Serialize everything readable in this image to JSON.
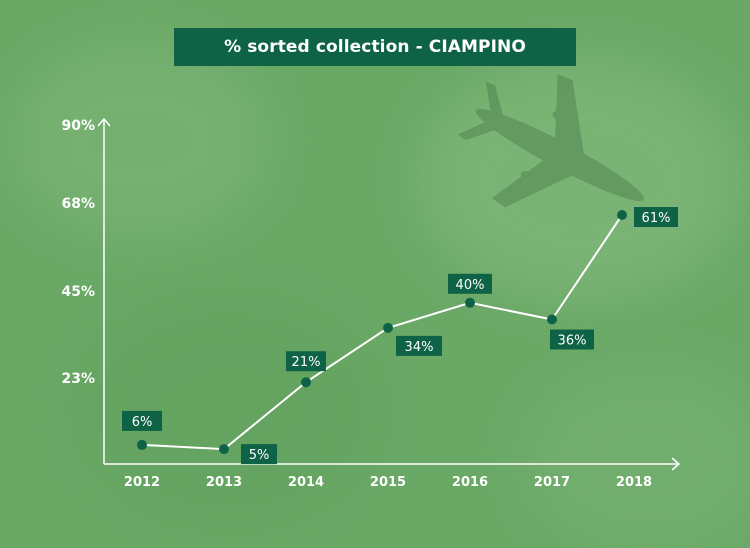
{
  "colors": {
    "background": "#6aa866",
    "accent": "#0e6347",
    "line": "#ffffff",
    "marker": "#0e6347"
  },
  "chart_data": {
    "type": "line",
    "title": "% sorted collection  - CIAMPINO",
    "categories": [
      "2012",
      "2013",
      "2014",
      "2015",
      "2016",
      "2017",
      "2018"
    ],
    "series": [
      {
        "values": [
          6,
          5,
          21,
          34,
          40,
          36,
          61
        ],
        "data_labels": [
          "6%",
          "5%",
          "21%",
          "34%",
          "40%",
          "36%",
          "61%"
        ]
      }
    ],
    "yticks": [
      "23%",
      "45%",
      "68%",
      "90%"
    ],
    "ylim": [
      0,
      90
    ],
    "grid": false,
    "legend": "none"
  }
}
